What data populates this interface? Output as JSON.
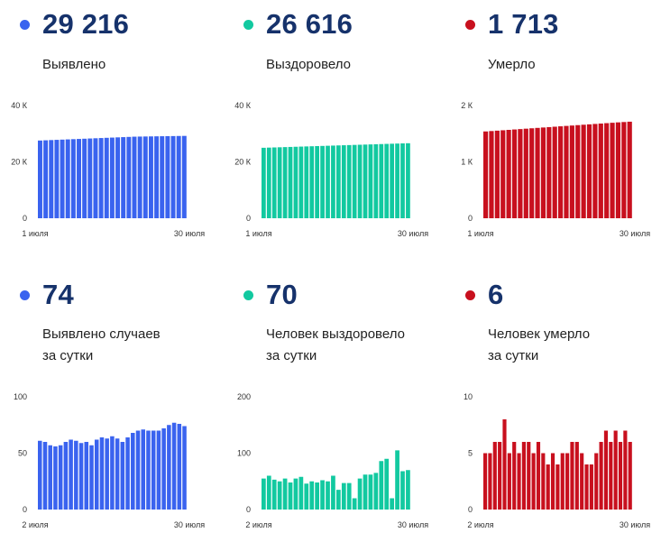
{
  "colors": {
    "blue": "#3a63ef",
    "green": "#12c9a0",
    "red": "#c8101e",
    "number": "#16326b"
  },
  "panels": [
    {
      "value": "29 216",
      "label_lines": [
        "Выявлено"
      ],
      "color": "blue"
    },
    {
      "value": "26 616",
      "label_lines": [
        "Выздоровело"
      ],
      "color": "green"
    },
    {
      "value": "1 713",
      "label_lines": [
        "Умерло"
      ],
      "color": "red"
    },
    {
      "value": "74",
      "label_lines": [
        "Выявлено случаев",
        "за сутки"
      ],
      "color": "blue"
    },
    {
      "value": "70",
      "label_lines": [
        "Человек выздоровело",
        "за сутки"
      ],
      "color": "green"
    },
    {
      "value": "6",
      "label_lines": [
        "Человек умерло",
        "за сутки"
      ],
      "color": "red"
    }
  ],
  "chart_data": [
    {
      "type": "bar",
      "ylim": [
        0,
        40000
      ],
      "yticks": [
        0,
        20000,
        40000
      ],
      "ytick_labels": [
        "0",
        "20 К",
        "40 К"
      ],
      "xtick_labels": [
        "1 июля",
        "30 июля"
      ],
      "color": "blue",
      "values": [
        27580,
        27660,
        27740,
        27820,
        27900,
        27980,
        28060,
        28140,
        28220,
        28300,
        28380,
        28460,
        28540,
        28620,
        28700,
        28780,
        28860,
        28940,
        28980,
        29010,
        29040,
        29070,
        29100,
        29130,
        29160,
        29190,
        29216
      ]
    },
    {
      "type": "bar",
      "ylim": [
        0,
        40000
      ],
      "yticks": [
        0,
        20000,
        40000
      ],
      "ytick_labels": [
        "0",
        "20 К",
        "40 К"
      ],
      "xtick_labels": [
        "1 июля",
        "30 июля"
      ],
      "color": "green",
      "values": [
        25000,
        25060,
        25120,
        25180,
        25240,
        25300,
        25360,
        25420,
        25480,
        25540,
        25600,
        25660,
        25720,
        25780,
        25840,
        25900,
        25960,
        26020,
        26080,
        26140,
        26200,
        26260,
        26320,
        26380,
        26440,
        26500,
        26560,
        26616
      ]
    },
    {
      "type": "bar",
      "ylim": [
        0,
        2000
      ],
      "yticks": [
        0,
        1000,
        2000
      ],
      "ytick_labels": [
        "0",
        "1 К",
        "2 К"
      ],
      "xtick_labels": [
        "1 июля",
        "30 июля"
      ],
      "color": "red",
      "values": [
        1540,
        1547,
        1554,
        1561,
        1568,
        1575,
        1582,
        1589,
        1596,
        1603,
        1610,
        1617,
        1624,
        1631,
        1638,
        1645,
        1652,
        1659,
        1666,
        1673,
        1680,
        1687,
        1694,
        1701,
        1707,
        1713
      ]
    },
    {
      "type": "bar",
      "ylim": [
        0,
        100
      ],
      "yticks": [
        0,
        50,
        100
      ],
      "ytick_labels": [
        "0",
        "50",
        "100"
      ],
      "xtick_labels": [
        "2 июля",
        "30 июля"
      ],
      "color": "blue",
      "values": [
        61,
        60,
        57,
        56,
        57,
        60,
        62,
        61,
        59,
        60,
        57,
        62,
        64,
        63,
        65,
        63,
        60,
        64,
        68,
        70,
        71,
        70,
        70,
        70,
        72,
        75,
        77,
        76,
        74
      ]
    },
    {
      "type": "bar",
      "ylim": [
        0,
        200
      ],
      "yticks": [
        0,
        100,
        200
      ],
      "ytick_labels": [
        "0",
        "100",
        "200"
      ],
      "xtick_labels": [
        "2 июля",
        "30 июля"
      ],
      "color": "green",
      "values": [
        55,
        60,
        53,
        50,
        55,
        48,
        55,
        58,
        46,
        50,
        48,
        52,
        50,
        60,
        35,
        47,
        47,
        20,
        55,
        62,
        62,
        65,
        86,
        90,
        20,
        105,
        68,
        70
      ]
    },
    {
      "type": "bar",
      "ylim": [
        0,
        10
      ],
      "yticks": [
        0,
        5,
        10
      ],
      "ytick_labels": [
        "0",
        "5",
        "10"
      ],
      "xtick_labels": [
        "2 июля",
        "30 июля"
      ],
      "color": "red",
      "values": [
        5,
        5,
        6,
        6,
        8,
        5,
        6,
        5,
        6,
        6,
        5,
        6,
        5,
        4,
        5,
        4,
        5,
        5,
        6,
        6,
        5,
        4,
        4,
        5,
        6,
        7,
        6,
        7,
        6,
        7,
        6
      ]
    }
  ]
}
